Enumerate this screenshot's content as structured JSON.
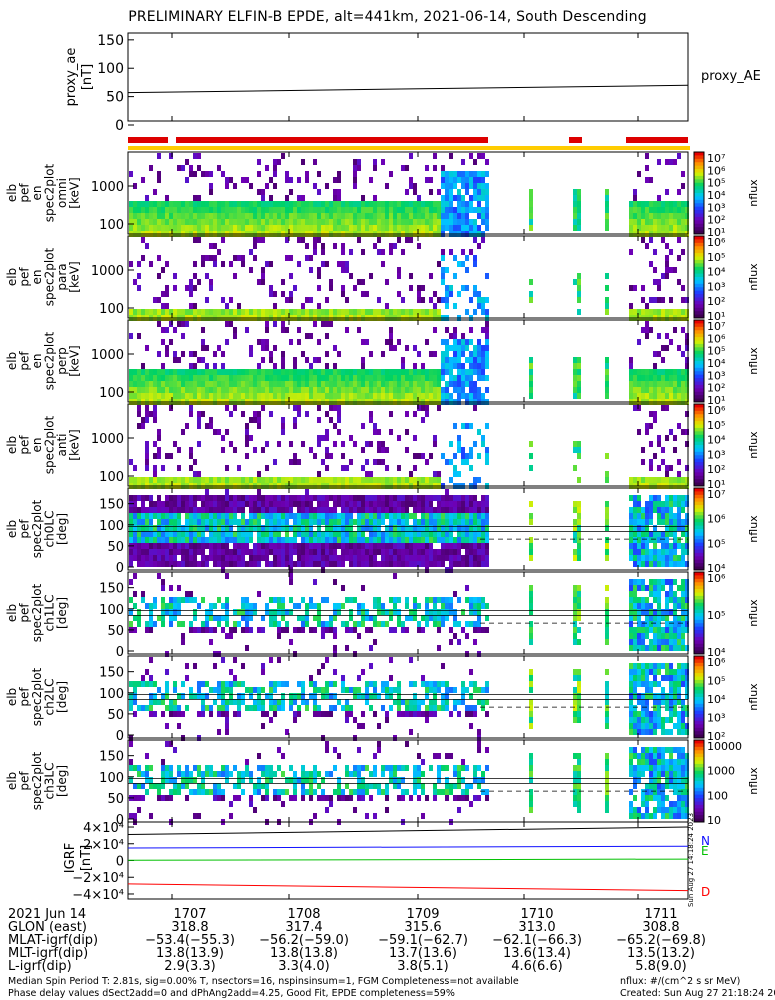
{
  "title": "PRELIMINARY ELFIN-B EPDE, alt=441km, 2021-06-14, South Descending",
  "proxy_panel": {
    "ylabel_line1": "proxy_ae",
    "ylabel_line2": "[nT]",
    "right_label": "proxy_AE",
    "yticks": [
      "0",
      "50",
      "100",
      "150"
    ],
    "ylim": [
      0,
      155
    ],
    "series": [
      {
        "x": [
          0,
          1
        ],
        "values": [
          57,
          70
        ]
      }
    ]
  },
  "status_bars": {
    "colors": {
      "science": "#dd0000",
      "fgm": "#ffcc00"
    }
  },
  "spectro_panels": [
    {
      "label": [
        "elb",
        "pef",
        "en",
        "spec2plot",
        "omni",
        "[keV]"
      ],
      "yticks": [
        "100",
        "1000"
      ],
      "cbar": [
        "10⁷",
        "10⁶",
        "10⁵",
        "10⁴",
        "10³",
        "10²",
        "10¹"
      ],
      "cbar_label": "nflux"
    },
    {
      "label": [
        "elb",
        "pef",
        "en",
        "spec2plot",
        "para",
        "[keV]"
      ],
      "yticks": [
        "100",
        "1000"
      ],
      "cbar": [
        "10⁶",
        "10⁵",
        "10⁴",
        "10³",
        "10²",
        "10¹"
      ],
      "cbar_label": "nflux"
    },
    {
      "label": [
        "elb",
        "pef",
        "en",
        "spec2plot",
        "perp",
        "[keV]"
      ],
      "yticks": [
        "100",
        "1000"
      ],
      "cbar": [
        "10⁷",
        "10⁶",
        "10⁵",
        "10⁴",
        "10³",
        "10²",
        "10¹"
      ],
      "cbar_label": "nflux"
    },
    {
      "label": [
        "elb",
        "pef",
        "en",
        "spec2plot",
        "anti",
        "[keV]"
      ],
      "yticks": [
        "100",
        "1000"
      ],
      "cbar": [
        "10⁶",
        "10⁵",
        "10⁴",
        "10³",
        "10²",
        "10¹"
      ],
      "cbar_label": "nflux"
    }
  ],
  "pa_panels": [
    {
      "label": [
        "elb",
        "pef",
        "spec2plot",
        "ch0LC",
        "[deg]"
      ],
      "yticks": [
        "0",
        "50",
        "100",
        "150"
      ],
      "cbar": [
        "10⁷",
        "10⁶",
        "10⁵",
        "10⁴"
      ],
      "cbar_label": "nflux"
    },
    {
      "label": [
        "elb",
        "pef",
        "spec2plot",
        "ch1LC",
        "[deg]"
      ],
      "yticks": [
        "0",
        "50",
        "100",
        "150"
      ],
      "cbar": [
        "10⁶",
        "10⁵",
        "10⁴"
      ],
      "cbar_label": "nflux"
    },
    {
      "label": [
        "elb",
        "pef",
        "spec2plot",
        "ch2LC",
        "[deg]"
      ],
      "yticks": [
        "0",
        "50",
        "100",
        "150"
      ],
      "cbar": [
        "10⁶",
        "10⁵",
        "10⁴",
        "10³",
        "10²"
      ],
      "cbar_label": "nflux"
    },
    {
      "label": [
        "elb",
        "pef",
        "spec2plot",
        "ch3LC",
        "[deg]"
      ],
      "yticks": [
        "0",
        "50",
        "100",
        "150"
      ],
      "cbar": [
        "10000",
        "1000",
        "100",
        "10"
      ],
      "cbar_label": "nflux"
    }
  ],
  "igrf_panel": {
    "ylabel_line1": "IGRF",
    "ylabel_line2": "[nT]",
    "yticks": [
      "4×10⁴",
      "2×10⁴",
      "0",
      "−2×10⁴",
      "−4×10⁴"
    ],
    "legend": [
      {
        "text": "N",
        "color": "#1010ff"
      },
      {
        "text": "E",
        "color": "#00c000"
      },
      {
        "text": "D",
        "color": "#ff0000"
      }
    ],
    "vertical_note": "Sun Aug 27 14:18:24 2023"
  },
  "chart_data": {
    "type": "line",
    "title": "PRELIMINARY ELFIN-B EPDE, alt=441km, 2021-06-14, South Descending",
    "x_categories": [
      "1707",
      "1708",
      "1709",
      "1710",
      "1711"
    ],
    "series": [
      {
        "name": "proxy_AE",
        "values": [
          57,
          60,
          63,
          66,
          70
        ]
      },
      {
        "name": "N",
        "values": [
          15000,
          15500,
          16000,
          16500,
          17000
        ]
      },
      {
        "name": "E",
        "values": [
          300,
          700,
          1100,
          1400,
          1700
        ]
      },
      {
        "name": "D",
        "values": [
          -28000,
          -30000,
          -32000,
          -34000,
          -36000
        ]
      }
    ]
  },
  "footer": {
    "row_labels": [
      "2021 Jun 14",
      "GLON (east)",
      "MLAT-igrf(dip)",
      "MLT-igrf(dip)",
      "L-igrf(dip)"
    ],
    "columns": [
      {
        "time": "1707",
        "glon": "318.8",
        "mlat": "−53.4(−55.3)",
        "mlt": "13.8(13.9)",
        "l": "2.9(3.3)"
      },
      {
        "time": "1708",
        "glon": "317.4",
        "mlat": "−56.2(−59.0)",
        "mlt": "13.8(13.8)",
        "l": "3.3(4.0)"
      },
      {
        "time": "1709",
        "glon": "315.6",
        "mlat": "−59.1(−62.7)",
        "mlt": "13.7(13.6)",
        "l": "3.8(5.1)"
      },
      {
        "time": "1710",
        "glon": "313.0",
        "mlat": "−62.1(−66.3)",
        "mlt": "13.6(13.4)",
        "l": "4.6(6.6)"
      },
      {
        "time": "1711",
        "glon": "308.8",
        "mlat": "−65.2(−69.8)",
        "mlt": "13.5(13.2)",
        "l": "5.8(9.0)"
      }
    ],
    "note_line1": "Median Spin Period T: 2.81s, sig=0.00% T, nsectors=16, nspinsinsum=1, FGM Completeness=not available",
    "note_line2": "Phase delay values dSect2add=0 and dPhAng2add=4.25, Good Fit, EPDE completeness=59%",
    "nflux_units": "nflux: #/(cm^2 s sr MeV)",
    "created": "Created: Sun Aug 27 21:18:24 2023"
  }
}
